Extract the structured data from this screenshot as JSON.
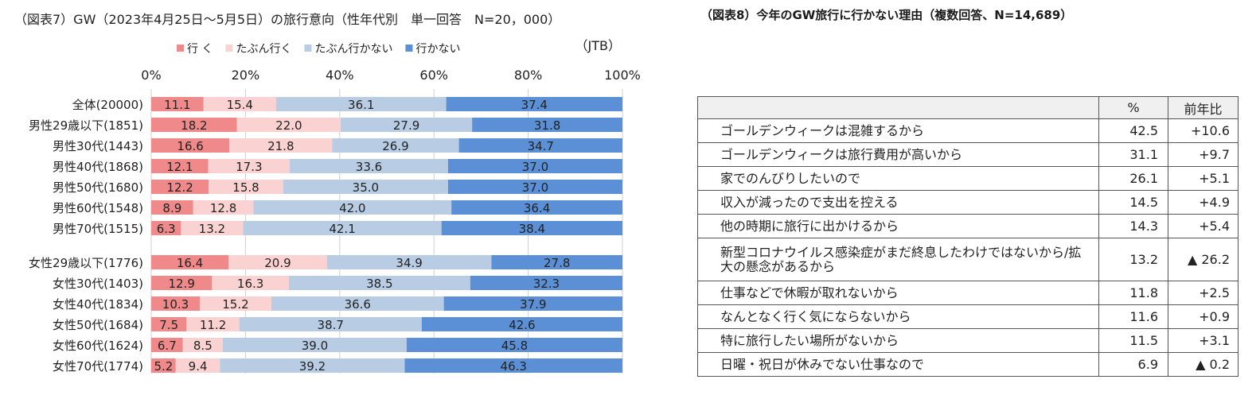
{
  "chart_data": [
    {
      "type": "bar",
      "orientation": "horizontal-stacked-100",
      "title": "（図表7）GW（2023年4月25日～5月5日）の旅行意向（性年代別　単一回答　N=20，000）",
      "source": "（JTB）",
      "xlim": [
        0,
        100
      ],
      "ticks": [
        "0%",
        "20%",
        "40%",
        "60%",
        "80%",
        "100%"
      ],
      "tick_values": [
        0,
        20,
        40,
        60,
        80,
        100
      ],
      "series_names": [
        "行 く",
        "たぶん行く",
        "たぶん行かない",
        "行かない"
      ],
      "colors": [
        "#f08a8a",
        "#fbd2d2",
        "#b8cce4",
        "#5b8fd6"
      ],
      "groups": [
        {
          "categories": [
            "全体(20000)",
            "男性29歳以下(1851)",
            "男性30代(1443)",
            "男性40代(1868)",
            "男性50代(1680)",
            "男性60代(1548)",
            "男性70代(1515)"
          ],
          "values": [
            [
              11.1,
              15.4,
              36.1,
              37.4
            ],
            [
              18.2,
              22.0,
              27.9,
              31.8
            ],
            [
              16.6,
              21.8,
              26.9,
              34.7
            ],
            [
              12.1,
              17.3,
              33.6,
              37.0
            ],
            [
              12.2,
              15.8,
              35.0,
              37.0
            ],
            [
              8.9,
              12.8,
              42.0,
              36.4
            ],
            [
              6.3,
              13.2,
              42.1,
              38.4
            ]
          ]
        },
        {
          "categories": [
            "女性29歳以下(1776)",
            "女性30代(1403)",
            "女性40代(1834)",
            "女性50代(1684)",
            "女性60代(1624)",
            "女性70代(1774)"
          ],
          "values": [
            [
              16.4,
              20.9,
              34.9,
              27.8
            ],
            [
              12.9,
              16.3,
              38.5,
              32.3
            ],
            [
              10.3,
              15.2,
              36.6,
              37.9
            ],
            [
              7.5,
              11.2,
              38.7,
              42.6
            ],
            [
              6.7,
              8.5,
              39.0,
              45.8
            ],
            [
              5.2,
              9.4,
              39.2,
              46.3
            ]
          ]
        }
      ]
    },
    {
      "type": "table",
      "title": "（図表8）今年のGW旅行に行かない理由（複数回答、N=14,689）",
      "columns": [
        "",
        "%",
        "前年比"
      ],
      "rows": [
        {
          "reason": "ゴールデンウィークは混雑するから",
          "pct": "42.5",
          "yoy": "+10.6"
        },
        {
          "reason": "ゴールデンウィークは旅行費用が高いから",
          "pct": "31.1",
          "yoy": "+9.7"
        },
        {
          "reason": "家でのんびりしたいので",
          "pct": "26.1",
          "yoy": "+5.1"
        },
        {
          "reason": "収入が減ったので支出を控える",
          "pct": "14.5",
          "yoy": "+4.9"
        },
        {
          "reason": "他の時期に旅行に出かけるから",
          "pct": "14.3",
          "yoy": "+5.4"
        },
        {
          "reason": "新型コロナウイルス感染症がまだ終息したわけではないから/拡大の懸念があるから",
          "pct": "13.2",
          "yoy": "▲ 26.2"
        },
        {
          "reason": "仕事などで休暇が取れないから",
          "pct": "11.8",
          "yoy": "+2.5"
        },
        {
          "reason": "なんとなく行く気にならないから",
          "pct": "11.6",
          "yoy": "+0.9"
        },
        {
          "reason": "特に旅行したい場所がないから",
          "pct": "11.5",
          "yoy": "+3.1"
        },
        {
          "reason": "日曜・祝日が休みでない仕事なので",
          "pct": "6.9",
          "yoy": "▲ 0.2"
        }
      ]
    }
  ]
}
